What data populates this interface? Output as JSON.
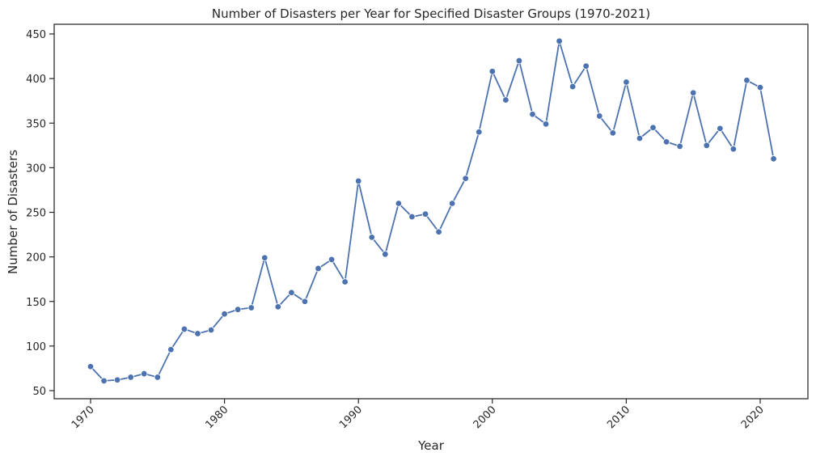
{
  "chart_data": {
    "type": "line",
    "title": "Number of Disasters per Year for Specified Disaster Groups (1970-2021)",
    "xlabel": "Year",
    "ylabel": "Number of Disasters",
    "xlim": [
      1967.4,
      1973.4
    ],
    "x_ticks": [
      1970,
      1980,
      1990,
      2000,
      2010,
      2020
    ],
    "y_ticks": [
      50,
      100,
      150,
      200,
      250,
      300,
      350,
      400,
      450
    ],
    "ylim": [
      40,
      462
    ],
    "grid": false,
    "series_color": "#4c72b0",
    "x": [
      1970,
      1971,
      1972,
      1973,
      1974,
      1975,
      1976,
      1977,
      1978,
      1979,
      1980,
      1981,
      1982,
      1983,
      1984,
      1985,
      1986,
      1987,
      1988,
      1989,
      1990,
      1991,
      1992,
      1993,
      1994,
      1995,
      1996,
      1997,
      1998,
      1999,
      2000,
      2001,
      2002,
      2003,
      2004,
      2005,
      2006,
      2007,
      2008,
      2009,
      2010,
      2011,
      2012,
      2013,
      2014,
      2015,
      2016,
      2017,
      2018,
      2019,
      2020,
      2021
    ],
    "values": [
      77,
      61,
      62,
      65,
      69,
      65,
      96,
      119,
      114,
      118,
      136,
      141,
      143,
      199,
      144,
      160,
      150,
      187,
      197,
      172,
      285,
      222,
      203,
      260,
      245,
      248,
      228,
      260,
      288,
      340,
      408,
      376,
      420,
      360,
      349,
      442,
      391,
      414,
      358,
      339,
      396,
      333,
      345,
      329,
      324,
      384,
      325,
      344,
      321,
      398,
      390,
      310
    ]
  }
}
